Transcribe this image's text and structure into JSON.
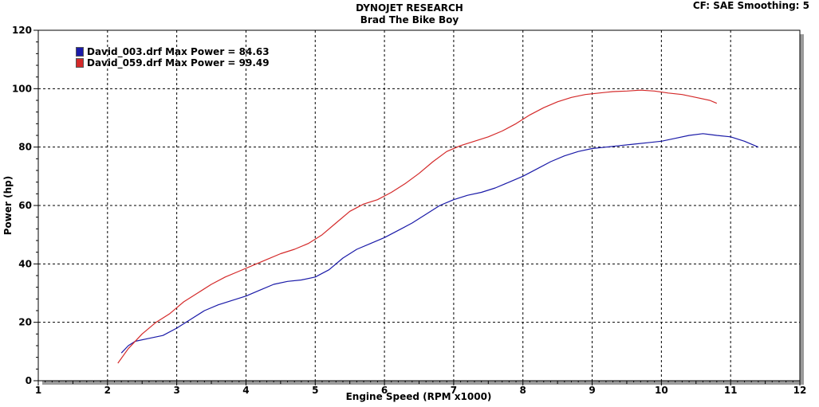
{
  "header": {
    "title": "DYNOJET RESEARCH",
    "subtitle": "Brad The Bike Boy",
    "cf_info": "CF: SAE  Smoothing: 5"
  },
  "chart_data": {
    "type": "line",
    "title": "DYNOJET RESEARCH",
    "subtitle": "Brad The Bike Boy",
    "xlabel": "Engine Speed (RPM x1000)",
    "ylabel": "Power (hp)",
    "xlim": [
      1,
      12
    ],
    "ylim": [
      0,
      120
    ],
    "xticks": [
      1,
      2,
      3,
      4,
      5,
      6,
      7,
      8,
      9,
      10,
      11,
      12
    ],
    "yticks": [
      0,
      20,
      40,
      60,
      80,
      100,
      120
    ],
    "grid": true,
    "legend_position": "top-left",
    "series": [
      {
        "name": "David_003.drf Max Power = 84.63",
        "color": "#1a1aa8",
        "x": [
          2.2,
          2.3,
          2.4,
          2.6,
          2.8,
          3.0,
          3.2,
          3.4,
          3.6,
          3.8,
          4.0,
          4.2,
          4.4,
          4.6,
          4.8,
          5.0,
          5.2,
          5.4,
          5.6,
          5.8,
          6.0,
          6.2,
          6.4,
          6.6,
          6.8,
          7.0,
          7.2,
          7.4,
          7.6,
          7.8,
          8.0,
          8.2,
          8.4,
          8.6,
          8.8,
          9.0,
          9.2,
          9.4,
          9.6,
          9.8,
          10.0,
          10.2,
          10.4,
          10.6,
          10.8,
          11.0,
          11.2,
          11.4
        ],
        "values": [
          9.5,
          12,
          13.5,
          14.5,
          15.5,
          18,
          21,
          24,
          26,
          27.5,
          29,
          31,
          33,
          34,
          34.5,
          35.5,
          38,
          42,
          45,
          47,
          49,
          51.5,
          54,
          57,
          60,
          62,
          63.5,
          64.5,
          66,
          68,
          70,
          72.5,
          75,
          77,
          78.5,
          79.5,
          80,
          80.5,
          81,
          81.5,
          82,
          83,
          84,
          84.6,
          84,
          83.5,
          82,
          80
        ]
      },
      {
        "name": "David_059.drf Max Power = 99.49",
        "color": "#d42a2a",
        "x": [
          2.15,
          2.3,
          2.5,
          2.7,
          2.9,
          3.1,
          3.3,
          3.5,
          3.7,
          3.9,
          4.1,
          4.3,
          4.5,
          4.7,
          4.9,
          5.1,
          5.3,
          5.5,
          5.7,
          5.9,
          6.1,
          6.3,
          6.5,
          6.7,
          6.9,
          7.1,
          7.3,
          7.5,
          7.7,
          7.9,
          8.1,
          8.3,
          8.5,
          8.7,
          8.9,
          9.1,
          9.3,
          9.5,
          9.7,
          9.9,
          10.1,
          10.3,
          10.5,
          10.7,
          10.8
        ],
        "values": [
          6,
          11,
          16,
          20,
          23,
          27,
          30,
          33,
          35.5,
          37.5,
          39.5,
          41.5,
          43.5,
          45,
          47,
          50,
          54,
          58,
          60.5,
          62,
          64.5,
          67.5,
          71,
          75,
          78.5,
          80.5,
          82,
          83.5,
          85.5,
          88,
          91,
          93.5,
          95.5,
          97,
          98,
          98.5,
          99,
          99.2,
          99.5,
          99.2,
          98.5,
          98,
          97,
          96,
          95
        ]
      }
    ]
  }
}
